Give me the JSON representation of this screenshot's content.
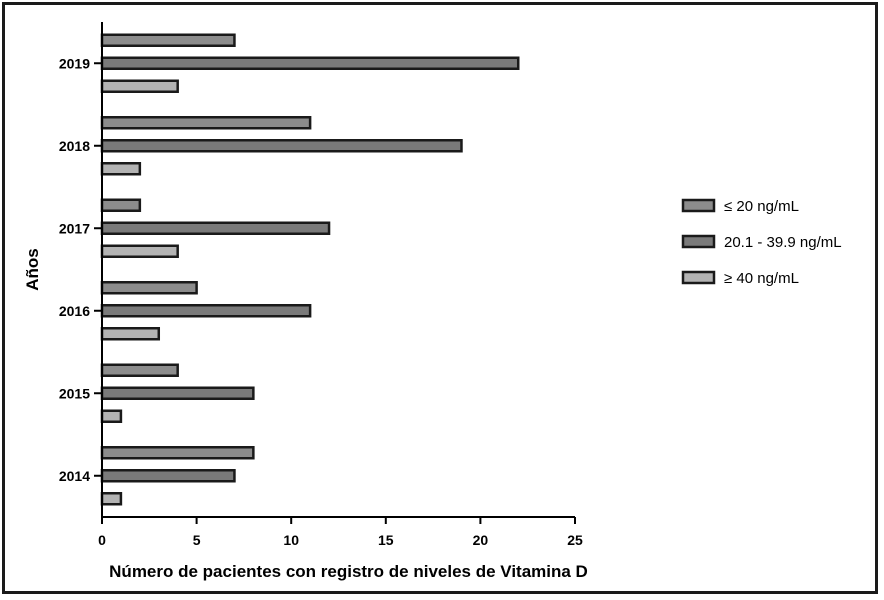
{
  "chart_data": {
    "type": "bar",
    "orientation": "horizontal",
    "categories": [
      "2014",
      "2015",
      "2016",
      "2017",
      "2018",
      "2019"
    ],
    "series": [
      {
        "name": "≤ 20 ng/mL",
        "values": [
          8,
          4,
          5,
          2,
          11,
          7
        ],
        "color": "#8c8c8c"
      },
      {
        "name": "20.1 - 39.9 ng/mL",
        "values": [
          7,
          8,
          11,
          12,
          19,
          22
        ],
        "color": "#7a7a7a"
      },
      {
        "name": "≥ 40 ng/mL",
        "values": [
          1,
          1,
          3,
          4,
          2,
          4
        ],
        "color": "#b3b3b3"
      }
    ],
    "xlabel": "Número de pacientes con registro de niveles de Vitamina D",
    "ylabel": "Años",
    "xlim": [
      0,
      25
    ],
    "xticks": [
      0,
      5,
      10,
      15,
      20,
      25
    ],
    "grid": false,
    "legend_position": "right"
  }
}
